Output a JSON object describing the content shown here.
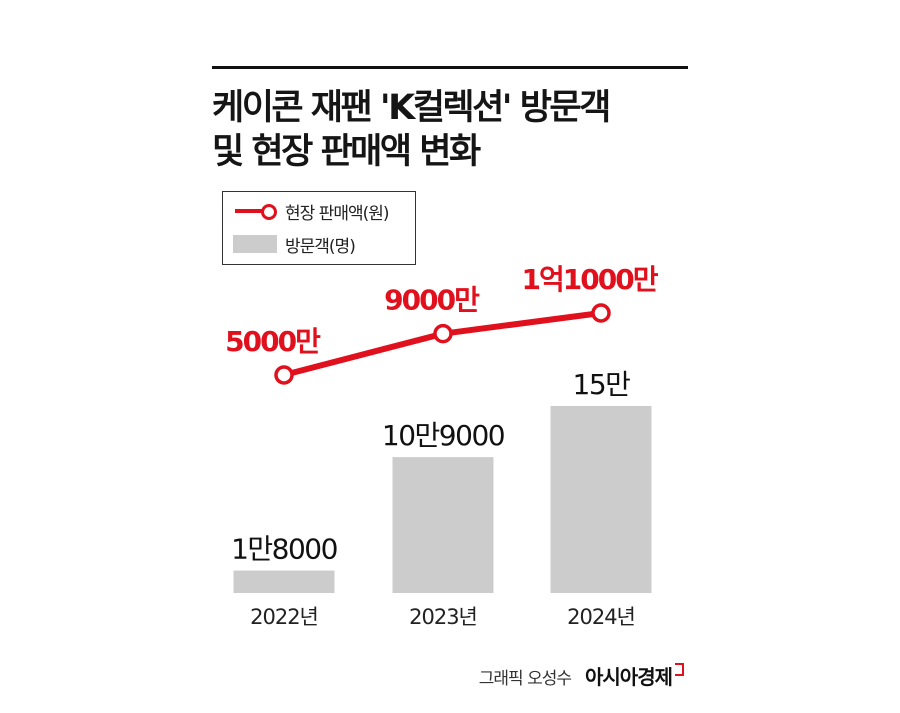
{
  "title_lines": [
    "케이콘 재팬 'K컬렉션' 방문객",
    "및 현장 판매액 변화"
  ],
  "legend": {
    "line_label": "현장 판매액(원)",
    "bar_label": "방문객(명)"
  },
  "colors": {
    "line": "#e0101d",
    "bar": "#cccccc",
    "text": "#111111"
  },
  "chart_data": {
    "type": "bar+line",
    "categories": [
      "2022년",
      "2023년",
      "2024년"
    ],
    "series": [
      {
        "name": "방문객(명)",
        "type": "bar",
        "values": [
          18000,
          109000,
          150000
        ],
        "labels": [
          "1만8000",
          "10만9000",
          "15만"
        ]
      },
      {
        "name": "현장 판매액(원)",
        "type": "line",
        "values": [
          50000000,
          90000000,
          110000000
        ],
        "labels": [
          "5000만",
          "9000만",
          "1억1000만"
        ]
      }
    ]
  },
  "credit": {
    "graphic": "그래픽 오성수",
    "logo": "아시아경제"
  }
}
